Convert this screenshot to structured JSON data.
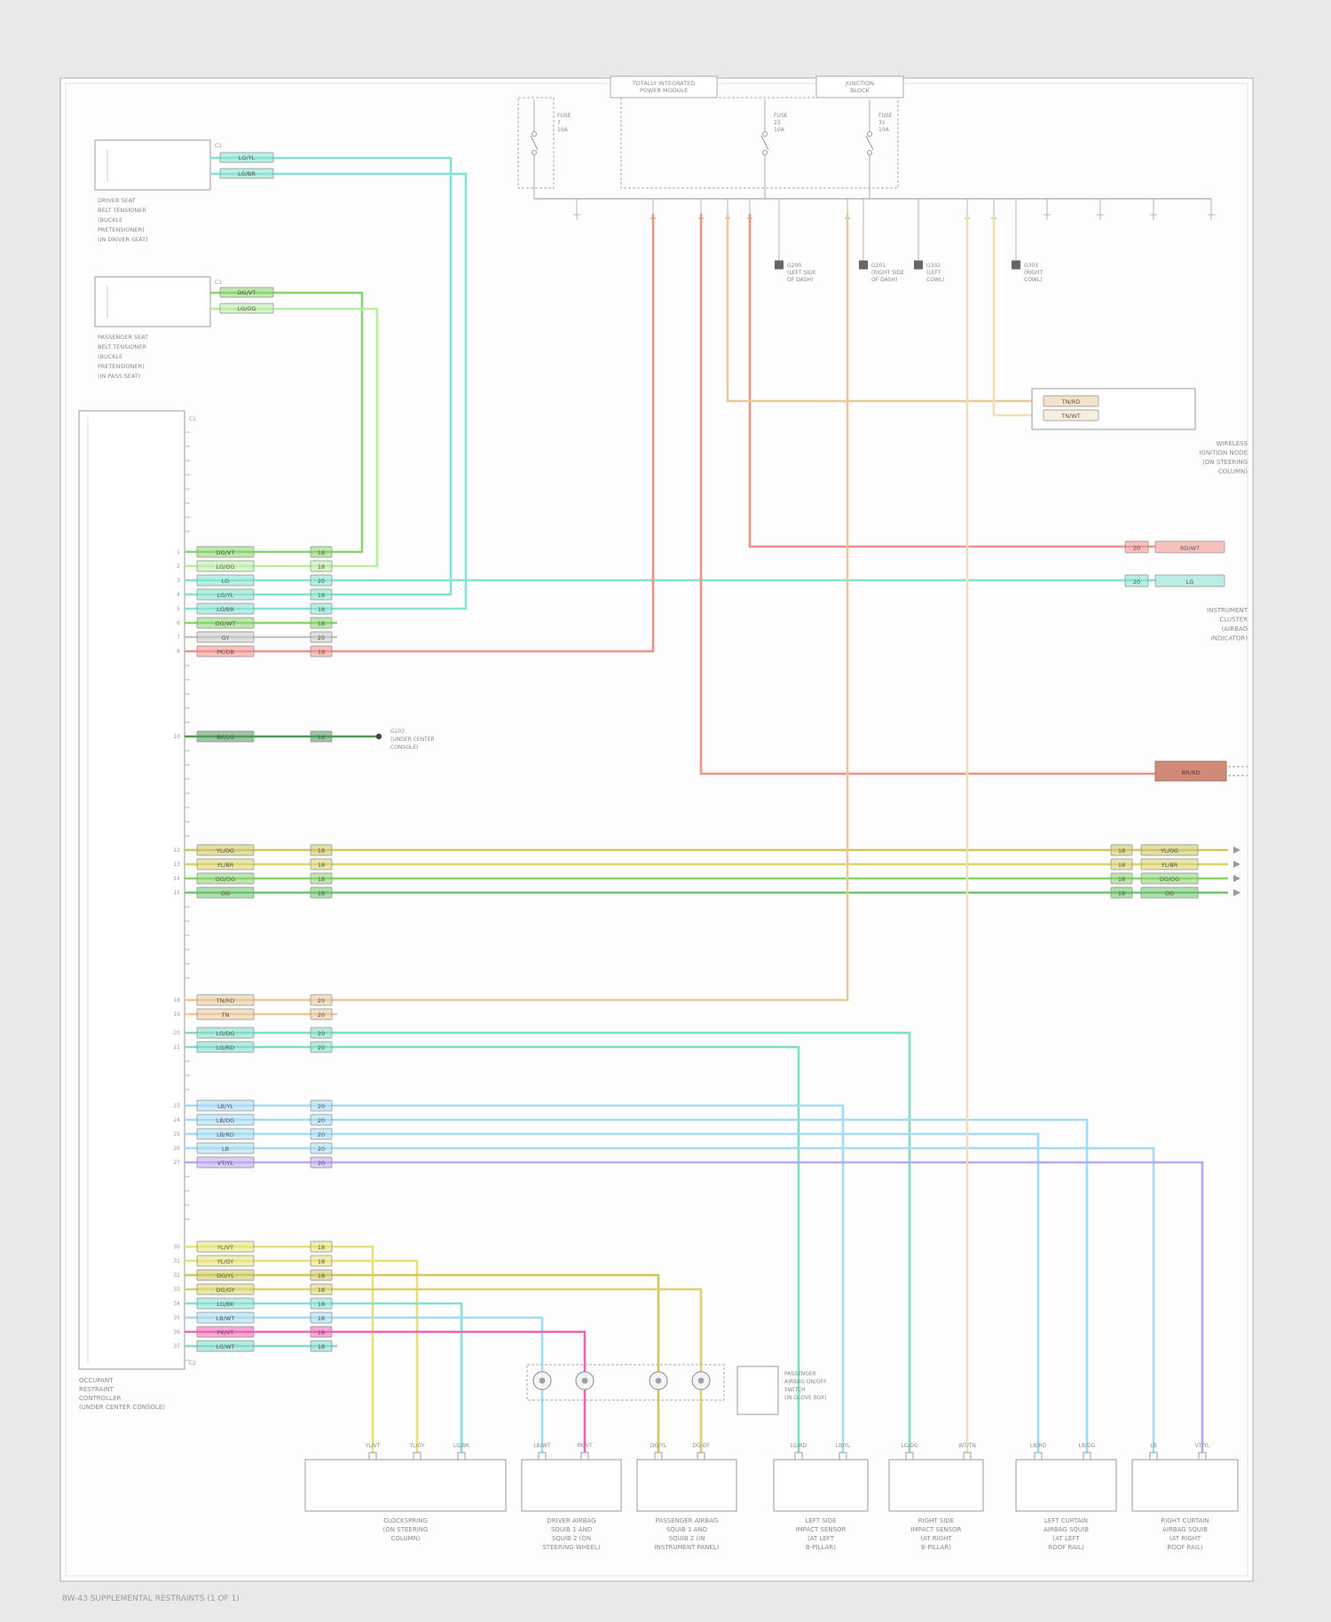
{
  "page": {
    "footer": "8W-43  SUPPLEMENTAL RESTRAINTS  (1 OF 1)"
  },
  "colors": {
    "cyan": "#84e2d2",
    "ltgreen": "#b9eda0",
    "green": "#8ad46f",
    "green2": "#6cc66b",
    "dkgreen": "#4d9b57",
    "red": "#f2918a",
    "magenta": "#ee64b4",
    "yellow": "#e8e176",
    "olive": "#cdc75f",
    "olive2": "#dad46e",
    "tan": "#e9c89c",
    "cream": "#ece0bb",
    "ltblue": "#a5daf3",
    "purple": "#bba7f0",
    "teal": "#7edcc7",
    "gray2": "#c6c6c6"
  },
  "top": {
    "tipm": [
      "TOTALLY INTEGRATED",
      "POWER MODULE"
    ],
    "jb": [
      "JUNCTION",
      "BLOCK"
    ],
    "fuses": [
      [
        "FUSE",
        "7",
        "10A"
      ],
      [
        "FUSE",
        "23",
        "10A"
      ],
      [
        "FUSE",
        "31",
        "10A"
      ]
    ],
    "grounds": [
      [
        "G200",
        "(LEFT SIDE",
        "OF DASH)"
      ],
      [
        "G201",
        "(RIGHT SIDE",
        "OF DASH)"
      ],
      [
        "G302",
        "(LEFT",
        "COWL)"
      ],
      [
        "G303",
        "(RIGHT",
        "COWL)"
      ]
    ]
  },
  "tensioner1": {
    "conn": "C1",
    "chips": [
      "LG/YL",
      "LG/BR"
    ],
    "label": [
      "DRIVER SEAT",
      "BELT TENSIONER",
      "(BUCKLE",
      "PRETENSIONER)",
      "(IN DRIVER SEAT)"
    ]
  },
  "tensioner2": {
    "conn": "C1",
    "chips": [
      "DG/VT",
      "LG/OG"
    ],
    "label": [
      "PASSENGER SEAT",
      "BELT TENSIONER",
      "(BUCKLE",
      "PRETENSIONER)",
      "(IN PASS SEAT)"
    ]
  },
  "orc": {
    "conn_top": "C1",
    "conn_bottom": "C2",
    "label": [
      "OCCUPANT",
      "RESTRAINT",
      "CONTROLLER",
      "(UNDER CENTER CONSOLE)"
    ]
  },
  "ground_note": [
    "G203",
    "(UNDER CENTER",
    "CONSOLE)"
  ],
  "win": {
    "chips": [
      "TN/RD",
      "TN/WT"
    ],
    "label": [
      "WIRELESS",
      "IGNITION NODE",
      "(ON STEERING",
      "COLUMN)"
    ]
  },
  "cluster": {
    "chips": [
      "RD/WT",
      "LG"
    ],
    "ga": [
      "20",
      "20"
    ],
    "label": [
      "INSTRUMENT",
      "CLUSTER",
      "(AIRBAG",
      "INDICATOR)"
    ]
  },
  "offpage": {
    "chip": "BR/RD"
  },
  "squib_box": {
    "label": [
      "PASSENGER",
      "AIRBAG ON/OFF",
      "SWITCH",
      "(IN GLOVE BOX)"
    ]
  },
  "module_pins": {
    "g1": [
      {
        "pin": "1",
        "chip": "DG/VT",
        "ga": "18",
        "color": "green"
      },
      {
        "pin": "2",
        "chip": "LG/OG",
        "ga": "18",
        "color": "ltgreen"
      },
      {
        "pin": "3",
        "chip": "LG",
        "ga": "20",
        "color": "cyan"
      },
      {
        "pin": "4",
        "chip": "LG/YL",
        "ga": "18",
        "color": "cyan"
      },
      {
        "pin": "5",
        "chip": "LG/BR",
        "ga": "18",
        "color": "cyan"
      },
      {
        "pin": "6",
        "chip": "DG/WT",
        "ga": "18",
        "color": "green"
      },
      {
        "pin": "7",
        "chip": "GY",
        "ga": "20",
        "color": "gray2"
      },
      {
        "pin": "8",
        "chip": "PK/DB",
        "ga": "18",
        "color": "red"
      }
    ],
    "gnd": {
      "pin": "10",
      "chip": "BK/LG",
      "ga": "18",
      "color": "dkgreen"
    },
    "g2": [
      {
        "pin": "12",
        "chip": "YL/OG",
        "ga": "18",
        "right": "YL/OG",
        "color": "olive"
      },
      {
        "pin": "13",
        "chip": "YL/BR",
        "ga": "18",
        "right": "YL/BR",
        "color": "olive2"
      },
      {
        "pin": "14",
        "chip": "DG/OG",
        "ga": "18",
        "right": "DG/OG",
        "color": "green"
      },
      {
        "pin": "15",
        "chip": "DG",
        "ga": "18",
        "right": "DG",
        "color": "green2"
      }
    ],
    "g3": [
      {
        "pin": "18",
        "chip": "TN/RD",
        "ga": "20",
        "color": "tan"
      },
      {
        "pin": "19",
        "chip": "TN",
        "ga": "20",
        "color": "tan"
      }
    ],
    "g4": [
      {
        "pin": "20",
        "chip": "LG/DG",
        "ga": "20",
        "color": "teal"
      },
      {
        "pin": "21",
        "chip": "LG/RD",
        "ga": "20",
        "color": "teal"
      }
    ],
    "g5": [
      {
        "pin": "23",
        "chip": "LB/YL",
        "ga": "20",
        "color": "ltblue"
      },
      {
        "pin": "24",
        "chip": "LB/DG",
        "ga": "20",
        "color": "ltblue"
      },
      {
        "pin": "25",
        "chip": "LB/RD",
        "ga": "20",
        "color": "ltblue"
      },
      {
        "pin": "26",
        "chip": "LB",
        "ga": "20",
        "color": "ltblue"
      },
      {
        "pin": "27",
        "chip": "VT/YL",
        "ga": "20",
        "color": "purple"
      }
    ],
    "g6": [
      {
        "pin": "30",
        "chip": "YL/VT",
        "ga": "18",
        "color": "yellow"
      },
      {
        "pin": "31",
        "chip": "YL/GY",
        "ga": "18",
        "color": "yellow"
      },
      {
        "pin": "32",
        "chip": "DG/YL",
        "ga": "18",
        "color": "olive"
      },
      {
        "pin": "33",
        "chip": "DG/GY",
        "ga": "18",
        "color": "olive2"
      },
      {
        "pin": "34",
        "chip": "LG/BK",
        "ga": "18",
        "color": "cyan"
      },
      {
        "pin": "35",
        "chip": "LB/WT",
        "ga": "18",
        "color": "ltblue"
      },
      {
        "pin": "36",
        "chip": "PK/VT",
        "ga": "18",
        "color": "magenta"
      },
      {
        "pin": "37",
        "chip": "LG/WT",
        "ga": "18",
        "color": "teal"
      }
    ]
  },
  "bottom_boxes": [
    {
      "stubs": [
        "YL/VT",
        "YL/GY",
        "LG/BK"
      ],
      "label": [
        "CLOCKSPRING",
        "(ON STEERING",
        "COLUMN)"
      ]
    },
    {
      "stubs": [
        "LB/WT",
        "PK/VT"
      ],
      "label": [
        "DRIVER AIRBAG",
        "SQUIB 1 AND",
        "SQUIB 2 (ON",
        "STEERING WHEEL)"
      ]
    },
    {
      "stubs": [
        "DG/YL",
        "DG/GY"
      ],
      "label": [
        "PASSENGER AIRBAG",
        "SQUIB 1 AND",
        "SQUIB 2 (IN",
        "INSTRUMENT PANEL)"
      ]
    },
    {
      "stubs": [
        "LG/RD",
        "LB/YL"
      ],
      "label": [
        "LEFT SIDE",
        "IMPACT SENSOR",
        "(AT LEFT",
        "B-PILLAR)"
      ]
    },
    {
      "stubs": [
        "LG/DG",
        "WT/TN"
      ],
      "label": [
        "RIGHT SIDE",
        "IMPACT SENSOR",
        "(AT RIGHT",
        "B-PILLAR)"
      ]
    },
    {
      "stubs": [
        "LB/RD",
        "LB/DG"
      ],
      "label": [
        "LEFT CURTAIN",
        "AIRBAG SQUIB",
        "(AT LEFT",
        "ROOF RAIL)"
      ]
    },
    {
      "stubs": [
        "LB",
        "VT/YL"
      ],
      "label": [
        "RIGHT CURTAIN",
        "AIRBAG SQUIB",
        "(AT RIGHT",
        "ROOF RAIL)"
      ]
    }
  ]
}
